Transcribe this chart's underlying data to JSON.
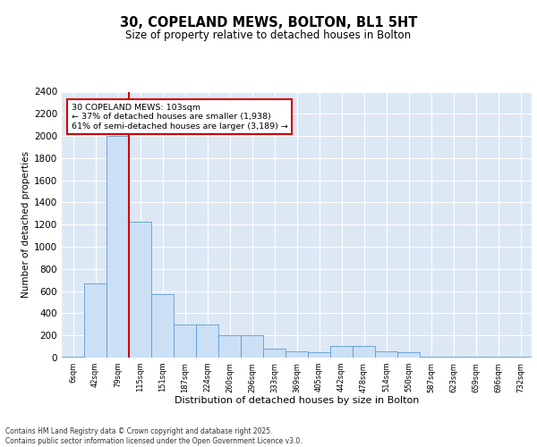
{
  "title_line1": "30, COPELAND MEWS, BOLTON, BL1 5HT",
  "title_line2": "Size of property relative to detached houses in Bolton",
  "xlabel": "Distribution of detached houses by size in Bolton",
  "ylabel": "Number of detached properties",
  "bar_color": "#cce0f5",
  "bar_edge_color": "#5b9bd5",
  "bg_color": "#dde8f5",
  "grid_color": "#ffffff",
  "vline_color": "#cc0000",
  "vline_x": 2.5,
  "annotation_text": "30 COPELAND MEWS: 103sqm\n← 37% of detached houses are smaller (1,938)\n61% of semi-detached houses are larger (3,189) →",
  "annotation_box_color": "#cc0000",
  "categories": [
    "6sqm",
    "42sqm",
    "79sqm",
    "115sqm",
    "151sqm",
    "187sqm",
    "224sqm",
    "260sqm",
    "296sqm",
    "333sqm",
    "369sqm",
    "405sqm",
    "442sqm",
    "478sqm",
    "514sqm",
    "550sqm",
    "587sqm",
    "623sqm",
    "659sqm",
    "696sqm",
    "732sqm"
  ],
  "values": [
    10,
    670,
    2000,
    1230,
    570,
    300,
    300,
    200,
    200,
    80,
    55,
    45,
    105,
    105,
    55,
    50,
    10,
    10,
    5,
    5,
    5
  ],
  "ylim": [
    0,
    2400
  ],
  "yticks": [
    0,
    200,
    400,
    600,
    800,
    1000,
    1200,
    1400,
    1600,
    1800,
    2000,
    2200,
    2400
  ],
  "footnote": "Contains HM Land Registry data © Crown copyright and database right 2025.\nContains public sector information licensed under the Open Government Licence v3.0."
}
